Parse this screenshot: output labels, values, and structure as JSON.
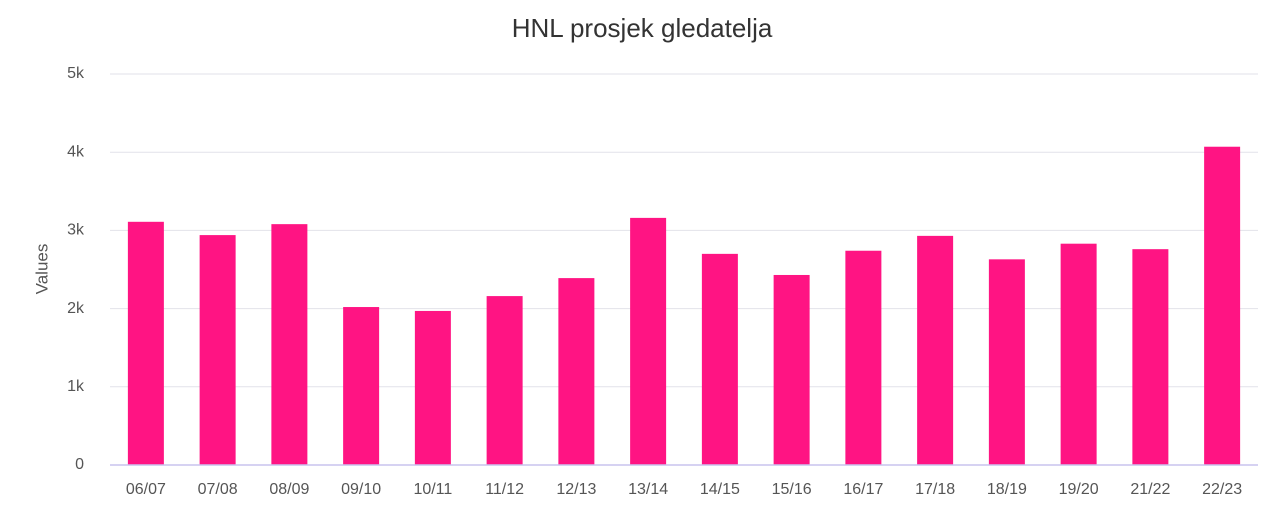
{
  "chart_data": {
    "type": "bar",
    "title": "HNL prosjek gledatelja",
    "y_label": "Values",
    "categories": [
      "06/07",
      "07/08",
      "08/09",
      "09/10",
      "10/11",
      "11/12",
      "12/13",
      "13/14",
      "14/15",
      "15/16",
      "16/17",
      "17/18",
      "18/19",
      "19/20",
      "21/22",
      "22/23"
    ],
    "values": [
      3110,
      2940,
      3080,
      2020,
      1970,
      2160,
      2390,
      3160,
      2700,
      2430,
      2740,
      2930,
      2630,
      2830,
      2760,
      4070
    ],
    "color": "#ff1483",
    "ylim": [
      0,
      5000
    ],
    "yticks": [
      0,
      {
        "value": 1000,
        "label": "1k"
      },
      {
        "value": 2000,
        "label": "2k"
      },
      {
        "value": 3000,
        "label": "3k"
      },
      {
        "value": 4000,
        "label": "4k"
      },
      {
        "value": 5000,
        "label": "5k"
      }
    ],
    "grid": true
  }
}
